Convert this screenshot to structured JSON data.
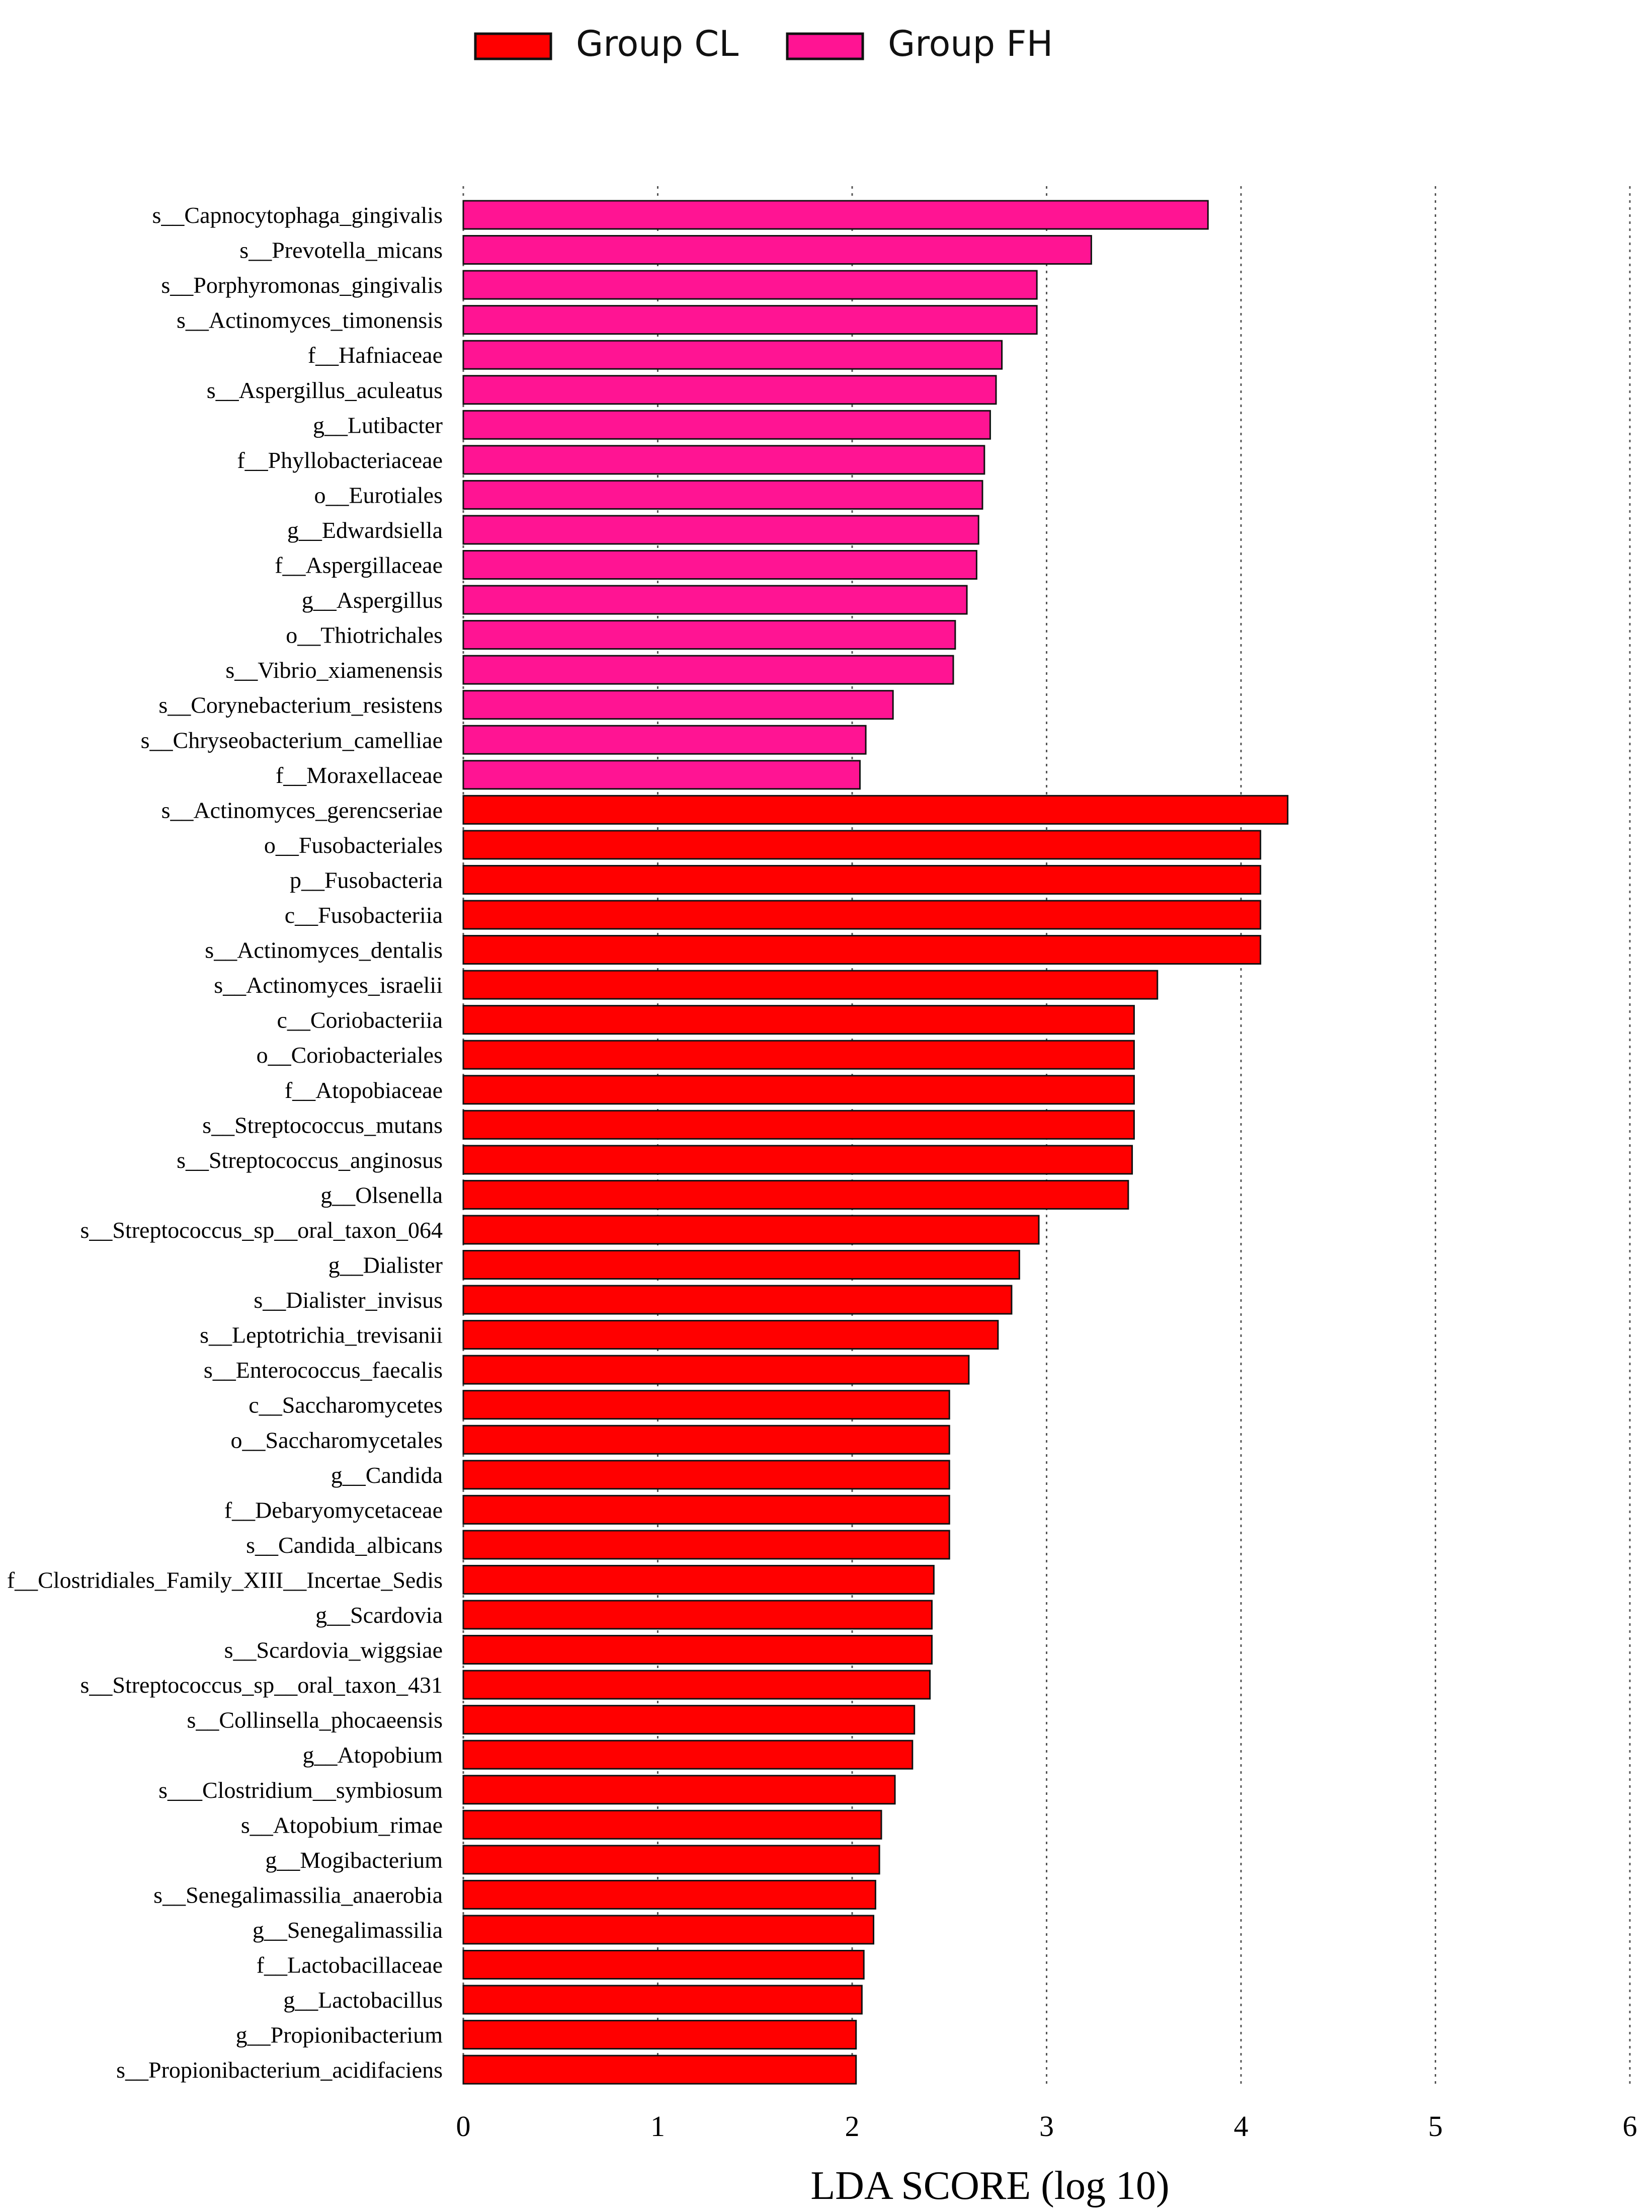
{
  "chart_data": {
    "type": "bar",
    "orientation": "horizontal",
    "title": "",
    "xlabel": "LDA SCORE (log 10)",
    "ylabel": "",
    "xlim": [
      0,
      6
    ],
    "xticks": [
      "0",
      "1",
      "2",
      "3",
      "4",
      "5",
      "6"
    ],
    "grid": "vertical dotted lines at x = 1, 2, 3, 4, 5, 6",
    "legend": {
      "placement": "top-center",
      "entries": [
        {
          "name": "Group CL",
          "color": "#ff0000"
        },
        {
          "name": "Group FH",
          "color": "#ff1493"
        }
      ]
    },
    "series_colors": {
      "Group CL": "#ff0000",
      "Group FH": "#ff1493"
    },
    "bars": [
      {
        "label": "s__Capnocytophaga_gingivalis",
        "value": 3.83,
        "group": "Group FH"
      },
      {
        "label": "s__Prevotella_micans",
        "value": 3.23,
        "group": "Group FH"
      },
      {
        "label": "s__Porphyromonas_gingivalis",
        "value": 2.95,
        "group": "Group FH"
      },
      {
        "label": "s__Actinomyces_timonensis",
        "value": 2.95,
        "group": "Group FH"
      },
      {
        "label": "f__Hafniaceae",
        "value": 2.77,
        "group": "Group FH"
      },
      {
        "label": "s__Aspergillus_aculeatus",
        "value": 2.74,
        "group": "Group FH"
      },
      {
        "label": "g__Lutibacter",
        "value": 2.71,
        "group": "Group FH"
      },
      {
        "label": "f__Phyllobacteriaceae",
        "value": 2.68,
        "group": "Group FH"
      },
      {
        "label": "o__Eurotiales",
        "value": 2.67,
        "group": "Group FH"
      },
      {
        "label": "g__Edwardsiella",
        "value": 2.65,
        "group": "Group FH"
      },
      {
        "label": "f__Aspergillaceae",
        "value": 2.64,
        "group": "Group FH"
      },
      {
        "label": "g__Aspergillus",
        "value": 2.59,
        "group": "Group FH"
      },
      {
        "label": "o__Thiotrichales",
        "value": 2.53,
        "group": "Group FH"
      },
      {
        "label": "s__Vibrio_xiamenensis",
        "value": 2.52,
        "group": "Group FH"
      },
      {
        "label": "s__Corynebacterium_resistens",
        "value": 2.21,
        "group": "Group FH"
      },
      {
        "label": "s__Chryseobacterium_camelliae",
        "value": 2.07,
        "group": "Group FH"
      },
      {
        "label": "f__Moraxellaceae",
        "value": 2.04,
        "group": "Group FH"
      },
      {
        "label": "s__Actinomyces_gerencseriae",
        "value": 4.24,
        "group": "Group CL"
      },
      {
        "label": "o__Fusobacteriales",
        "value": 4.1,
        "group": "Group CL"
      },
      {
        "label": "p__Fusobacteria",
        "value": 4.1,
        "group": "Group CL"
      },
      {
        "label": "c__Fusobacteriia",
        "value": 4.1,
        "group": "Group CL"
      },
      {
        "label": "s__Actinomyces_dentalis",
        "value": 4.1,
        "group": "Group CL"
      },
      {
        "label": "s__Actinomyces_israelii",
        "value": 3.57,
        "group": "Group CL"
      },
      {
        "label": "c__Coriobacteriia",
        "value": 3.45,
        "group": "Group CL"
      },
      {
        "label": "o__Coriobacteriales",
        "value": 3.45,
        "group": "Group CL"
      },
      {
        "label": "f__Atopobiaceae",
        "value": 3.45,
        "group": "Group CL"
      },
      {
        "label": "s__Streptococcus_mutans",
        "value": 3.45,
        "group": "Group CL"
      },
      {
        "label": "s__Streptococcus_anginosus",
        "value": 3.44,
        "group": "Group CL"
      },
      {
        "label": "g__Olsenella",
        "value": 3.42,
        "group": "Group CL"
      },
      {
        "label": "s__Streptococcus_sp__oral_taxon_064",
        "value": 2.96,
        "group": "Group CL"
      },
      {
        "label": "g__Dialister",
        "value": 2.86,
        "group": "Group CL"
      },
      {
        "label": "s__Dialister_invisus",
        "value": 2.82,
        "group": "Group CL"
      },
      {
        "label": "s__Leptotrichia_trevisanii",
        "value": 2.75,
        "group": "Group CL"
      },
      {
        "label": "s__Enterococcus_faecalis",
        "value": 2.6,
        "group": "Group CL"
      },
      {
        "label": "c__Saccharomycetes",
        "value": 2.5,
        "group": "Group CL"
      },
      {
        "label": "o__Saccharomycetales",
        "value": 2.5,
        "group": "Group CL"
      },
      {
        "label": "g__Candida",
        "value": 2.5,
        "group": "Group CL"
      },
      {
        "label": "f__Debaryomycetaceae",
        "value": 2.5,
        "group": "Group CL"
      },
      {
        "label": "s__Candida_albicans",
        "value": 2.5,
        "group": "Group CL"
      },
      {
        "label": "f__Clostridiales_Family_XIII__Incertae_Sedis",
        "value": 2.42,
        "group": "Group CL"
      },
      {
        "label": "g__Scardovia",
        "value": 2.41,
        "group": "Group CL"
      },
      {
        "label": "s__Scardovia_wiggsiae",
        "value": 2.41,
        "group": "Group CL"
      },
      {
        "label": "s__Streptococcus_sp__oral_taxon_431",
        "value": 2.4,
        "group": "Group CL"
      },
      {
        "label": "s__Collinsella_phocaeensis",
        "value": 2.32,
        "group": "Group CL"
      },
      {
        "label": "g__Atopobium",
        "value": 2.31,
        "group": "Group CL"
      },
      {
        "label": "s___Clostridium__symbiosum",
        "value": 2.22,
        "group": "Group CL"
      },
      {
        "label": "s__Atopobium_rimae",
        "value": 2.15,
        "group": "Group CL"
      },
      {
        "label": "g__Mogibacterium",
        "value": 2.14,
        "group": "Group CL"
      },
      {
        "label": "s__Senegalimassilia_anaerobia",
        "value": 2.12,
        "group": "Group CL"
      },
      {
        "label": "g__Senegalimassilia",
        "value": 2.11,
        "group": "Group CL"
      },
      {
        "label": "f__Lactobacillaceae",
        "value": 2.06,
        "group": "Group CL"
      },
      {
        "label": "g__Lactobacillus",
        "value": 2.05,
        "group": "Group CL"
      },
      {
        "label": "g__Propionibacterium",
        "value": 2.02,
        "group": "Group CL"
      },
      {
        "label": "s__Propionibacterium_acidifaciens",
        "value": 2.02,
        "group": "Group CL"
      }
    ]
  }
}
